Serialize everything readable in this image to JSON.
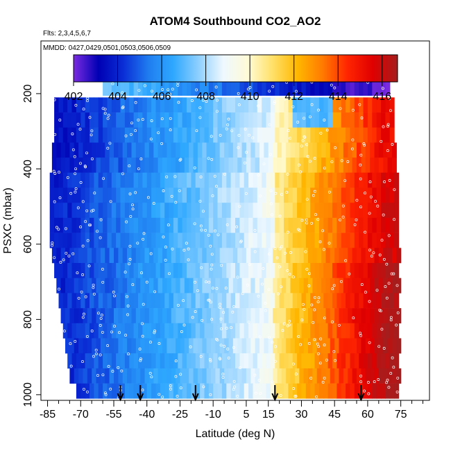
{
  "chart_data": {
    "type": "heatmap",
    "title": "ATOM4 Southbound CO2_AO2",
    "flights_label": "Flts: 2,3,4,5,6,7",
    "mmdd_label": "MMDD: 0427,0429,0501,0503,0506,0509",
    "xlabel": "Latitude (deg N)",
    "ylabel": "PSXC (mbar)",
    "xlim": [
      -88,
      88
    ],
    "ylim": [
      1015,
      60
    ],
    "x_ticks": [
      -85,
      -70,
      -55,
      -40,
      -25,
      -10,
      5,
      15,
      30,
      45,
      60,
      75
    ],
    "x_minor_ticks": [
      -80,
      -75,
      -65,
      -60,
      -50,
      -45,
      -35,
      -30,
      -20,
      -15,
      -5,
      0,
      10,
      20,
      25,
      35,
      40,
      50,
      55,
      65,
      70,
      80,
      85
    ],
    "y_ticks": [
      200,
      400,
      600,
      800,
      1000
    ],
    "colorbar": {
      "min": 402,
      "max": 416.7,
      "ticks": [
        402,
        404,
        406,
        408,
        410,
        412,
        414,
        416
      ],
      "colors": [
        "#7a2be0",
        "#0000b4",
        "#0a2ed6",
        "#1f7cf0",
        "#2ea8ff",
        "#8ccfff",
        "#eef8ff",
        "#fffbd6",
        "#ffe066",
        "#ffb700",
        "#ff7a00",
        "#ff2400",
        "#e00000",
        "#a61d1d"
      ]
    },
    "arrows_lat": [
      -52,
      -43,
      -18,
      18,
      57
    ],
    "bands": [
      {
        "p": 185,
        "lat_min": -60,
        "lat_max": 70
      },
      {
        "p": 230,
        "lat_min": -82,
        "lat_max": 72
      },
      {
        "p": 270,
        "lat_min": -82,
        "lat_max": 72
      },
      {
        "p": 310,
        "lat_min": -82,
        "lat_max": 71
      },
      {
        "p": 350,
        "lat_min": -83,
        "lat_max": 72
      },
      {
        "p": 390,
        "lat_min": -83,
        "lat_max": 72
      },
      {
        "p": 430,
        "lat_min": -84,
        "lat_max": 73
      },
      {
        "p": 470,
        "lat_min": -84,
        "lat_max": 73
      },
      {
        "p": 510,
        "lat_min": -84,
        "lat_max": 73
      },
      {
        "p": 550,
        "lat_min": -84,
        "lat_max": 73
      },
      {
        "p": 590,
        "lat_min": -84,
        "lat_max": 74
      },
      {
        "p": 630,
        "lat_min": -83,
        "lat_max": 74
      },
      {
        "p": 670,
        "lat_min": -82,
        "lat_max": 74
      },
      {
        "p": 710,
        "lat_min": -81,
        "lat_max": 74
      },
      {
        "p": 750,
        "lat_min": -80,
        "lat_max": 74
      },
      {
        "p": 790,
        "lat_min": -79,
        "lat_max": 74
      },
      {
        "p": 830,
        "lat_min": -78,
        "lat_max": 74
      },
      {
        "p": 870,
        "lat_min": -77,
        "lat_max": 74
      },
      {
        "p": 910,
        "lat_min": -76,
        "lat_max": 74
      },
      {
        "p": 950,
        "lat_min": -75,
        "lat_max": 74
      },
      {
        "p": 990,
        "lat_min": -72,
        "lat_max": 74
      }
    ]
  }
}
